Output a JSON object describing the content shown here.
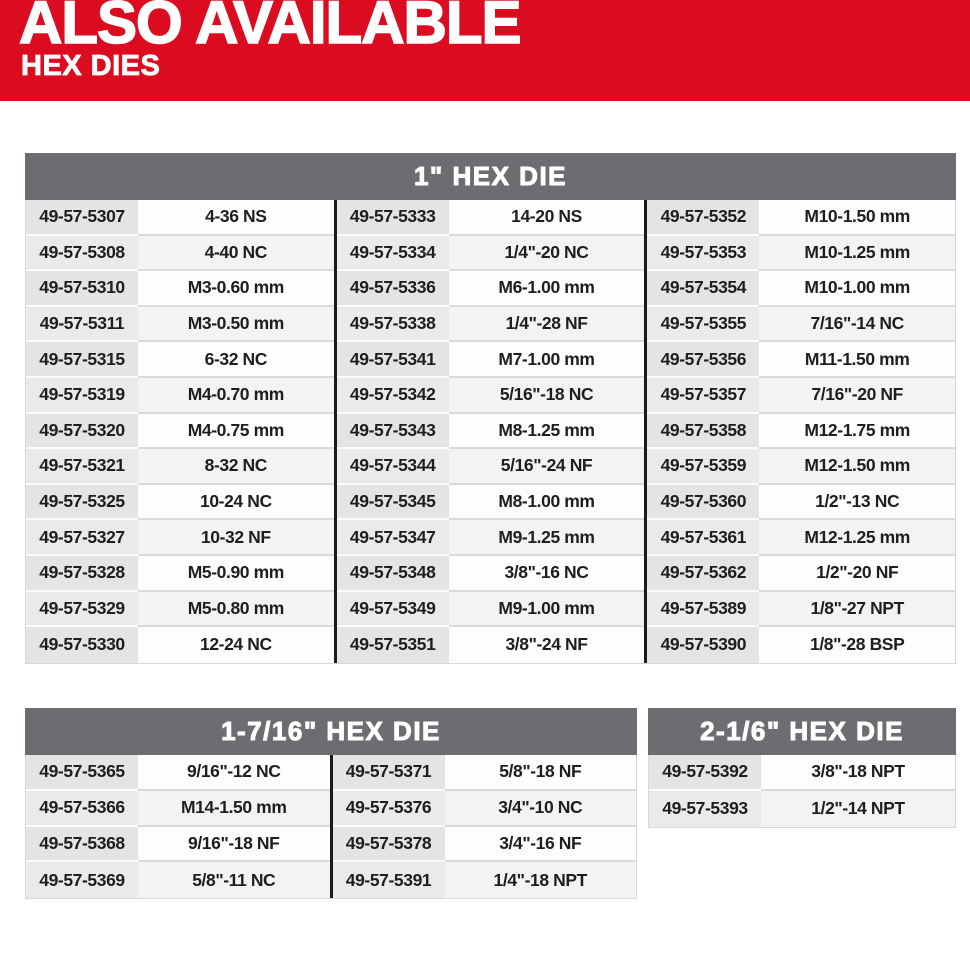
{
  "banner": {
    "title": "ALSO AVAILABLE",
    "subtitle": "HEX DIES"
  },
  "colors": {
    "brand_red": "#db0b20",
    "table_header_gray": "#6b6d70",
    "part_cell_gray": "#e4e4e4",
    "column_divider_black": "#1b1b1b"
  },
  "tables": [
    {
      "title": "1\" HEX DIE",
      "groups": [
        {
          "rows": [
            {
              "part": "49-57-5307",
              "size": "4-36 NS"
            },
            {
              "part": "49-57-5308",
              "size": "4-40 NC"
            },
            {
              "part": "49-57-5310",
              "size": "M3-0.60 mm"
            },
            {
              "part": "49-57-5311",
              "size": "M3-0.50 mm"
            },
            {
              "part": "49-57-5315",
              "size": "6-32 NC"
            },
            {
              "part": "49-57-5319",
              "size": "M4-0.70 mm"
            },
            {
              "part": "49-57-5320",
              "size": "M4-0.75 mm"
            },
            {
              "part": "49-57-5321",
              "size": "8-32 NC"
            },
            {
              "part": "49-57-5325",
              "size": "10-24 NC"
            },
            {
              "part": "49-57-5327",
              "size": "10-32 NF"
            },
            {
              "part": "49-57-5328",
              "size": "M5-0.90 mm"
            },
            {
              "part": "49-57-5329",
              "size": "M5-0.80 mm"
            },
            {
              "part": "49-57-5330",
              "size": "12-24 NC"
            }
          ]
        },
        {
          "rows": [
            {
              "part": "49-57-5333",
              "size": "14-20 NS"
            },
            {
              "part": "49-57-5334",
              "size": "1/4\"-20 NC"
            },
            {
              "part": "49-57-5336",
              "size": "M6-1.00 mm"
            },
            {
              "part": "49-57-5338",
              "size": "1/4\"-28 NF"
            },
            {
              "part": "49-57-5341",
              "size": "M7-1.00 mm"
            },
            {
              "part": "49-57-5342",
              "size": "5/16\"-18 NC"
            },
            {
              "part": "49-57-5343",
              "size": "M8-1.25 mm"
            },
            {
              "part": "49-57-5344",
              "size": "5/16\"-24 NF"
            },
            {
              "part": "49-57-5345",
              "size": "M8-1.00 mm"
            },
            {
              "part": "49-57-5347",
              "size": "M9-1.25 mm"
            },
            {
              "part": "49-57-5348",
              "size": "3/8\"-16 NC"
            },
            {
              "part": "49-57-5349",
              "size": "M9-1.00 mm"
            },
            {
              "part": "49-57-5351",
              "size": "3/8\"-24 NF"
            }
          ]
        },
        {
          "rows": [
            {
              "part": "49-57-5352",
              "size": "M10-1.50 mm"
            },
            {
              "part": "49-57-5353",
              "size": "M10-1.25 mm"
            },
            {
              "part": "49-57-5354",
              "size": "M10-1.00 mm"
            },
            {
              "part": "49-57-5355",
              "size": "7/16\"-14 NC"
            },
            {
              "part": "49-57-5356",
              "size": "M11-1.50 mm"
            },
            {
              "part": "49-57-5357",
              "size": "7/16\"-20 NF"
            },
            {
              "part": "49-57-5358",
              "size": "M12-1.75 mm"
            },
            {
              "part": "49-57-5359",
              "size": "M12-1.50 mm"
            },
            {
              "part": "49-57-5360",
              "size": "1/2\"-13 NC"
            },
            {
              "part": "49-57-5361",
              "size": "M12-1.25 mm"
            },
            {
              "part": "49-57-5362",
              "size": "1/2\"-20 NF"
            },
            {
              "part": "49-57-5389",
              "size": "1/8\"-27 NPT"
            },
            {
              "part": "49-57-5390",
              "size": "1/8\"-28 BSP"
            }
          ]
        }
      ]
    },
    {
      "title": "1-7/16\" HEX DIE",
      "groups": [
        {
          "rows": [
            {
              "part": "49-57-5365",
              "size": "9/16\"-12 NC"
            },
            {
              "part": "49-57-5366",
              "size": "M14-1.50 mm"
            },
            {
              "part": "49-57-5368",
              "size": "9/16\"-18 NF"
            },
            {
              "part": "49-57-5369",
              "size": "5/8\"-11 NC"
            }
          ]
        },
        {
          "rows": [
            {
              "part": "49-57-5371",
              "size": "5/8\"-18 NF"
            },
            {
              "part": "49-57-5376",
              "size": "3/4\"-10 NC"
            },
            {
              "part": "49-57-5378",
              "size": "3/4\"-16 NF"
            },
            {
              "part": "49-57-5391",
              "size": "1/4\"-18 NPT"
            }
          ]
        }
      ]
    },
    {
      "title": "2-1/6\" HEX DIE",
      "groups": [
        {
          "rows": [
            {
              "part": "49-57-5392",
              "size": "3/8\"-18 NPT"
            },
            {
              "part": "49-57-5393",
              "size": "1/2\"-14 NPT"
            }
          ]
        }
      ]
    }
  ]
}
